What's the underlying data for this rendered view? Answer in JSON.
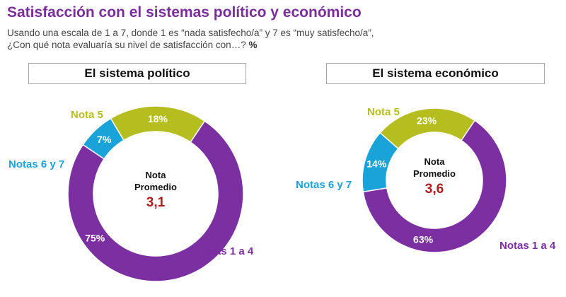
{
  "header": {
    "title": "Satisfacción con el sistemas político y económico",
    "subtitle_line1": "Usando una escala de 1 a 7, donde 1 es “nada satisfecho/a” y 7 es “muy satisfecho/a”,",
    "subtitle_line2": "¿Con qué nota evaluaría su nivel de satisfacción con…?",
    "subtitle_unit": "%"
  },
  "colors": {
    "nota5": "#b5bd1f",
    "notas67": "#1aa3d9",
    "notas14": "#7b2fa1",
    "title": "#7a2e9a",
    "average": "#b01c1c"
  },
  "chart_data": [
    {
      "type": "pie",
      "title": "El sistema político",
      "categories": [
        "Nota 5",
        "Notas 6 y 7",
        "Notas 1 a 4"
      ],
      "values": [
        18,
        7,
        75
      ],
      "value_labels": [
        "18%",
        "7%",
        "75%"
      ],
      "center_label_line1": "Nota",
      "center_label_line2": "Promedio",
      "center_value": "3,1"
    },
    {
      "type": "pie",
      "title": "El sistema económico",
      "categories": [
        "Nota 5",
        "Notas 6 y 7",
        "Notas 1 a 4"
      ],
      "values": [
        23,
        14,
        63
      ],
      "value_labels": [
        "23%",
        "14%",
        "63%"
      ],
      "center_label_line1": "Nota",
      "center_label_line2": "Promedio",
      "center_value": "3,6"
    }
  ]
}
